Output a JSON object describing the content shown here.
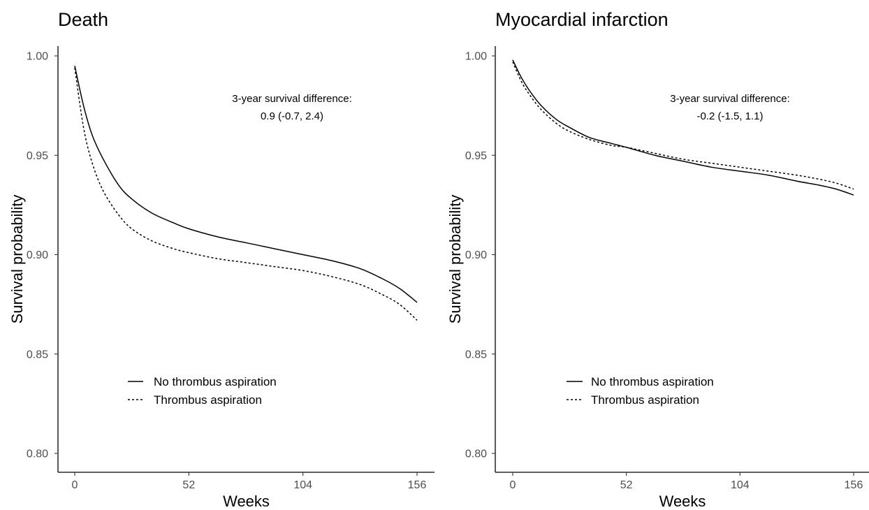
{
  "chart_data": [
    {
      "type": "line",
      "title": "Death",
      "xlabel": "Weeks",
      "ylabel": "Survival probability",
      "xlim": [
        0,
        156
      ],
      "ylim": [
        0.8,
        1.0
      ],
      "xticks": [
        0,
        52,
        104,
        156
      ],
      "xtick_labels": [
        "0",
        "52",
        "104",
        "156"
      ],
      "yticks": [
        0.8,
        0.85,
        0.9,
        0.95,
        1.0
      ],
      "ytick_labels": [
        "0.80",
        "0.85",
        "0.90",
        "0.95",
        "1.00"
      ],
      "grid": false,
      "legend_position": "bottom-left",
      "annotation": [
        "3-year survival difference:",
        "0.9 (-0.7, 2.4)"
      ],
      "series": [
        {
          "name": "No thrombus aspiration",
          "linestyle": "solid",
          "x": [
            0,
            4,
            8,
            13,
            20,
            26,
            35,
            45,
            52,
            65,
            78,
            91,
            104,
            117,
            130,
            140,
            148,
            156
          ],
          "y": [
            0.995,
            0.975,
            0.96,
            0.948,
            0.935,
            0.928,
            0.921,
            0.916,
            0.913,
            0.909,
            0.906,
            0.903,
            0.9,
            0.897,
            0.893,
            0.888,
            0.883,
            0.876
          ]
        },
        {
          "name": "Thrombus aspiration",
          "linestyle": "dashed",
          "x": [
            0,
            4,
            8,
            13,
            20,
            26,
            35,
            45,
            52,
            65,
            78,
            91,
            104,
            117,
            130,
            140,
            148,
            156
          ],
          "y": [
            0.994,
            0.964,
            0.946,
            0.932,
            0.92,
            0.913,
            0.907,
            0.903,
            0.901,
            0.898,
            0.896,
            0.894,
            0.892,
            0.889,
            0.885,
            0.88,
            0.875,
            0.867
          ]
        }
      ]
    },
    {
      "type": "line",
      "title": "Myocardial infarction",
      "xlabel": "Weeks",
      "ylabel": "Survival probability",
      "xlim": [
        0,
        156
      ],
      "ylim": [
        0.8,
        1.0
      ],
      "xticks": [
        0,
        52,
        104,
        156
      ],
      "xtick_labels": [
        "0",
        "52",
        "104",
        "156"
      ],
      "yticks": [
        0.8,
        0.85,
        0.9,
        0.95,
        1.0
      ],
      "ytick_labels": [
        "0.80",
        "0.85",
        "0.90",
        "0.95",
        "1.00"
      ],
      "grid": false,
      "legend_position": "bottom-left",
      "annotation": [
        "3-year survival difference:",
        "-0.2 (-1.5, 1.1)"
      ],
      "series": [
        {
          "name": "No thrombus aspiration",
          "linestyle": "solid",
          "x": [
            0,
            4,
            8,
            13,
            20,
            26,
            35,
            45,
            52,
            65,
            78,
            91,
            104,
            117,
            130,
            140,
            148,
            156
          ],
          "y": [
            0.998,
            0.989,
            0.982,
            0.975,
            0.968,
            0.964,
            0.959,
            0.956,
            0.954,
            0.95,
            0.947,
            0.944,
            0.942,
            0.94,
            0.937,
            0.935,
            0.933,
            0.93
          ]
        },
        {
          "name": "Thrombus aspiration",
          "linestyle": "dashed",
          "x": [
            0,
            4,
            8,
            13,
            20,
            26,
            35,
            45,
            52,
            65,
            78,
            91,
            104,
            117,
            130,
            140,
            148,
            156
          ],
          "y": [
            0.997,
            0.987,
            0.98,
            0.973,
            0.966,
            0.962,
            0.958,
            0.955,
            0.954,
            0.951,
            0.948,
            0.946,
            0.944,
            0.942,
            0.94,
            0.938,
            0.936,
            0.933
          ]
        }
      ]
    }
  ]
}
